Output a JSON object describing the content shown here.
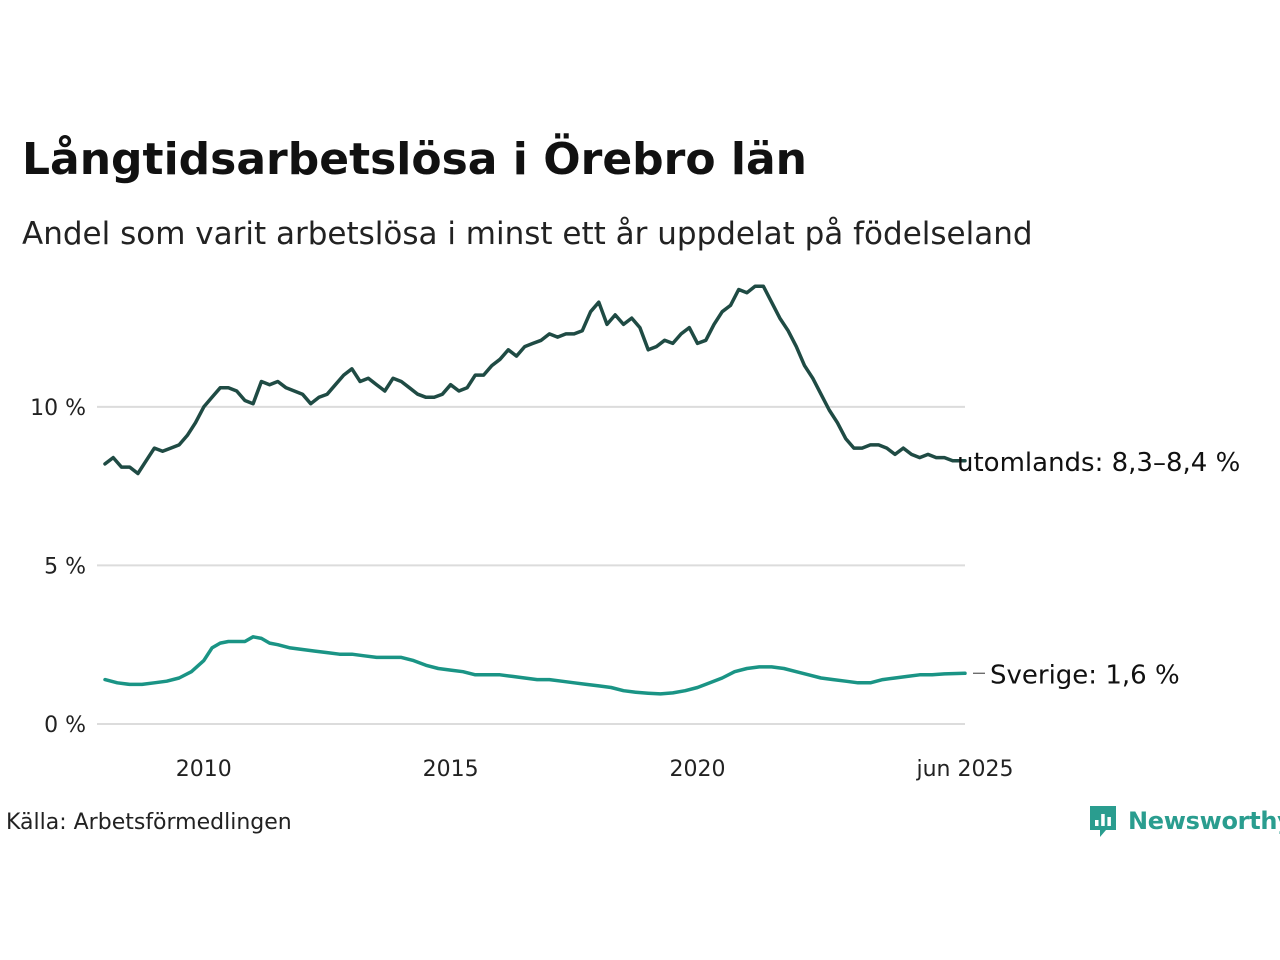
{
  "header": {
    "title": "Långtidsarbetslösa i Örebro län",
    "subtitle": "Andel som varit arbetslösa i minst ett år uppdelat på födelseland"
  },
  "footer": {
    "source": "Källa: Arbetsförmedlingen",
    "brand": "Newsworthy",
    "brand_icon": "newsworthy-logo-icon",
    "brand_color": "#2a9d8f"
  },
  "chart_data": {
    "type": "line",
    "ylim": [
      0,
      14
    ],
    "yticks": [
      0,
      5,
      10
    ],
    "ytick_labels": [
      "0 %",
      "5 %",
      "10 %"
    ],
    "xlim": [
      "2008-01",
      "2025-06"
    ],
    "xticks": [
      "2010-01",
      "2015-01",
      "2020-01",
      "2025-06"
    ],
    "xtick_labels": [
      "2010",
      "2015",
      "2020",
      "jun 2025"
    ],
    "grid": "horizontal",
    "legend": "direct labels at line ends",
    "series": [
      {
        "name": "utomlands",
        "end_label": "utomlands: 8,3–8,4 %",
        "color": "#1f4b44",
        "points": [
          [
            "2008-01",
            8.2
          ],
          [
            "2008-03",
            8.4
          ],
          [
            "2008-05",
            8.1
          ],
          [
            "2008-07",
            8.1
          ],
          [
            "2008-09",
            7.9
          ],
          [
            "2008-11",
            8.3
          ],
          [
            "2009-01",
            8.7
          ],
          [
            "2009-03",
            8.6
          ],
          [
            "2009-05",
            8.7
          ],
          [
            "2009-07",
            8.8
          ],
          [
            "2009-09",
            9.1
          ],
          [
            "2009-11",
            9.5
          ],
          [
            "2010-01",
            10.0
          ],
          [
            "2010-03",
            10.3
          ],
          [
            "2010-05",
            10.6
          ],
          [
            "2010-07",
            10.6
          ],
          [
            "2010-09",
            10.5
          ],
          [
            "2010-11",
            10.2
          ],
          [
            "2011-01",
            10.1
          ],
          [
            "2011-03",
            10.8
          ],
          [
            "2011-05",
            10.7
          ],
          [
            "2011-07",
            10.8
          ],
          [
            "2011-09",
            10.6
          ],
          [
            "2011-11",
            10.5
          ],
          [
            "2012-01",
            10.4
          ],
          [
            "2012-03",
            10.1
          ],
          [
            "2012-05",
            10.3
          ],
          [
            "2012-07",
            10.4
          ],
          [
            "2012-09",
            10.7
          ],
          [
            "2012-11",
            11.0
          ],
          [
            "2013-01",
            11.2
          ],
          [
            "2013-03",
            10.8
          ],
          [
            "2013-05",
            10.9
          ],
          [
            "2013-07",
            10.7
          ],
          [
            "2013-09",
            10.5
          ],
          [
            "2013-11",
            10.9
          ],
          [
            "2014-01",
            10.8
          ],
          [
            "2014-03",
            10.6
          ],
          [
            "2014-05",
            10.4
          ],
          [
            "2014-07",
            10.3
          ],
          [
            "2014-09",
            10.3
          ],
          [
            "2014-11",
            10.4
          ],
          [
            "2015-01",
            10.7
          ],
          [
            "2015-03",
            10.5
          ],
          [
            "2015-05",
            10.6
          ],
          [
            "2015-07",
            11.0
          ],
          [
            "2015-09",
            11.0
          ],
          [
            "2015-11",
            11.3
          ],
          [
            "2016-01",
            11.5
          ],
          [
            "2016-03",
            11.8
          ],
          [
            "2016-05",
            11.6
          ],
          [
            "2016-07",
            11.9
          ],
          [
            "2016-09",
            12.0
          ],
          [
            "2016-11",
            12.1
          ],
          [
            "2017-01",
            12.3
          ],
          [
            "2017-03",
            12.2
          ],
          [
            "2017-05",
            12.3
          ],
          [
            "2017-07",
            12.3
          ],
          [
            "2017-09",
            12.4
          ],
          [
            "2017-11",
            13.0
          ],
          [
            "2018-01",
            13.3
          ],
          [
            "2018-03",
            12.6
          ],
          [
            "2018-05",
            12.9
          ],
          [
            "2018-07",
            12.6
          ],
          [
            "2018-09",
            12.8
          ],
          [
            "2018-11",
            12.5
          ],
          [
            "2019-01",
            11.8
          ],
          [
            "2019-03",
            11.9
          ],
          [
            "2019-05",
            12.1
          ],
          [
            "2019-07",
            12.0
          ],
          [
            "2019-09",
            12.3
          ],
          [
            "2019-11",
            12.5
          ],
          [
            "2020-01",
            12.0
          ],
          [
            "2020-03",
            12.1
          ],
          [
            "2020-05",
            12.6
          ],
          [
            "2020-07",
            13.0
          ],
          [
            "2020-09",
            13.2
          ],
          [
            "2020-11",
            13.7
          ],
          [
            "2021-01",
            13.6
          ],
          [
            "2021-03",
            13.8
          ],
          [
            "2021-05",
            13.8
          ],
          [
            "2021-07",
            13.3
          ],
          [
            "2021-09",
            12.8
          ],
          [
            "2021-11",
            12.4
          ],
          [
            "2022-01",
            11.9
          ],
          [
            "2022-03",
            11.3
          ],
          [
            "2022-05",
            10.9
          ],
          [
            "2022-07",
            10.4
          ],
          [
            "2022-09",
            9.9
          ],
          [
            "2022-11",
            9.5
          ],
          [
            "2023-01",
            9.0
          ],
          [
            "2023-03",
            8.7
          ],
          [
            "2023-05",
            8.7
          ],
          [
            "2023-07",
            8.8
          ],
          [
            "2023-09",
            8.8
          ],
          [
            "2023-11",
            8.7
          ],
          [
            "2024-01",
            8.5
          ],
          [
            "2024-03",
            8.7
          ],
          [
            "2024-05",
            8.5
          ],
          [
            "2024-07",
            8.4
          ],
          [
            "2024-09",
            8.5
          ],
          [
            "2024-11",
            8.4
          ],
          [
            "2025-01",
            8.4
          ],
          [
            "2025-03",
            8.3
          ],
          [
            "2025-06",
            8.3
          ]
        ]
      },
      {
        "name": "Sverige",
        "end_label": "Sverige: 1,6 %",
        "color": "#1a9485",
        "points": [
          [
            "2008-01",
            1.4
          ],
          [
            "2008-04",
            1.3
          ],
          [
            "2008-07",
            1.25
          ],
          [
            "2008-10",
            1.25
          ],
          [
            "2009-01",
            1.3
          ],
          [
            "2009-04",
            1.35
          ],
          [
            "2009-07",
            1.45
          ],
          [
            "2009-10",
            1.65
          ],
          [
            "2010-01",
            2.0
          ],
          [
            "2010-03",
            2.4
          ],
          [
            "2010-05",
            2.55
          ],
          [
            "2010-07",
            2.6
          ],
          [
            "2010-09",
            2.6
          ],
          [
            "2010-11",
            2.6
          ],
          [
            "2011-01",
            2.75
          ],
          [
            "2011-03",
            2.7
          ],
          [
            "2011-05",
            2.55
          ],
          [
            "2011-07",
            2.5
          ],
          [
            "2011-10",
            2.4
          ],
          [
            "2012-01",
            2.35
          ],
          [
            "2012-04",
            2.3
          ],
          [
            "2012-07",
            2.25
          ],
          [
            "2012-10",
            2.2
          ],
          [
            "2013-01",
            2.2
          ],
          [
            "2013-04",
            2.15
          ],
          [
            "2013-07",
            2.1
          ],
          [
            "2013-10",
            2.1
          ],
          [
            "2014-01",
            2.1
          ],
          [
            "2014-04",
            2.0
          ],
          [
            "2014-07",
            1.85
          ],
          [
            "2014-10",
            1.75
          ],
          [
            "2015-01",
            1.7
          ],
          [
            "2015-04",
            1.65
          ],
          [
            "2015-07",
            1.55
          ],
          [
            "2015-10",
            1.55
          ],
          [
            "2016-01",
            1.55
          ],
          [
            "2016-04",
            1.5
          ],
          [
            "2016-07",
            1.45
          ],
          [
            "2016-10",
            1.4
          ],
          [
            "2017-01",
            1.4
          ],
          [
            "2017-04",
            1.35
          ],
          [
            "2017-07",
            1.3
          ],
          [
            "2017-10",
            1.25
          ],
          [
            "2018-01",
            1.2
          ],
          [
            "2018-04",
            1.15
          ],
          [
            "2018-07",
            1.05
          ],
          [
            "2018-10",
            1.0
          ],
          [
            "2019-01",
            0.97
          ],
          [
            "2019-04",
            0.95
          ],
          [
            "2019-07",
            0.98
          ],
          [
            "2019-10",
            1.05
          ],
          [
            "2020-01",
            1.15
          ],
          [
            "2020-04",
            1.3
          ],
          [
            "2020-07",
            1.45
          ],
          [
            "2020-10",
            1.65
          ],
          [
            "2021-01",
            1.75
          ],
          [
            "2021-04",
            1.8
          ],
          [
            "2021-07",
            1.8
          ],
          [
            "2021-10",
            1.75
          ],
          [
            "2022-01",
            1.65
          ],
          [
            "2022-04",
            1.55
          ],
          [
            "2022-07",
            1.45
          ],
          [
            "2022-10",
            1.4
          ],
          [
            "2023-01",
            1.35
          ],
          [
            "2023-04",
            1.3
          ],
          [
            "2023-07",
            1.3
          ],
          [
            "2023-10",
            1.4
          ],
          [
            "2024-01",
            1.45
          ],
          [
            "2024-04",
            1.5
          ],
          [
            "2024-07",
            1.55
          ],
          [
            "2024-10",
            1.55
          ],
          [
            "2025-01",
            1.58
          ],
          [
            "2025-06",
            1.6
          ]
        ]
      }
    ]
  }
}
